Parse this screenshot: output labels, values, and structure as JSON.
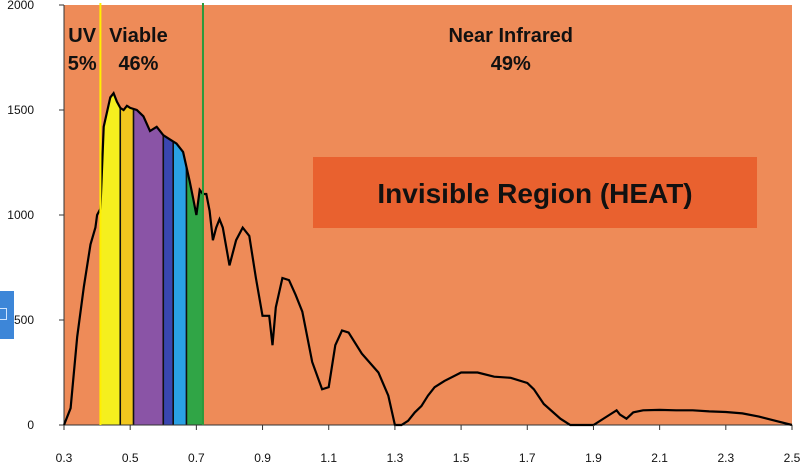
{
  "chart_data": {
    "type": "area",
    "title": "",
    "xlabel": "",
    "ylabel": "",
    "xlim": [
      0.3,
      2.5
    ],
    "ylim": [
      0,
      2000
    ],
    "x_ticks": [
      "0.3",
      "0.5",
      "0.7",
      "0.9",
      "1.1",
      "1.3",
      "1.5",
      "1.7",
      "1.9",
      "2.1",
      "2.3",
      "2.5"
    ],
    "y_ticks": [
      "0",
      "500",
      "1000",
      "1500",
      "2000"
    ],
    "series": [
      {
        "x": [
          0.3,
          0.32,
          0.34,
          0.36,
          0.38,
          0.395,
          0.4,
          0.41,
          0.42,
          0.44,
          0.45,
          0.46,
          0.47,
          0.48,
          0.49,
          0.5,
          0.52,
          0.54,
          0.56,
          0.58,
          0.6,
          0.62,
          0.64,
          0.66,
          0.68,
          0.69,
          0.7,
          0.71,
          0.72,
          0.73,
          0.74,
          0.75,
          0.76,
          0.77,
          0.78,
          0.8,
          0.82,
          0.84,
          0.86,
          0.88,
          0.9,
          0.92,
          0.93,
          0.94,
          0.96,
          0.98,
          1.0,
          1.02,
          1.05,
          1.08,
          1.1,
          1.12,
          1.14,
          1.16,
          1.2,
          1.25,
          1.28,
          1.3,
          1.32,
          1.34,
          1.36,
          1.38,
          1.4,
          1.42,
          1.45,
          1.5,
          1.55,
          1.6,
          1.65,
          1.7,
          1.72,
          1.75,
          1.8,
          1.83,
          1.85,
          1.9,
          1.95,
          1.97,
          1.98,
          2.0,
          2.02,
          2.05,
          2.1,
          2.15,
          2.2,
          2.25,
          2.3,
          2.35,
          2.4,
          2.45,
          2.5
        ],
        "y": [
          0,
          80,
          420,
          660,
          860,
          940,
          1000,
          1030,
          1420,
          1560,
          1580,
          1540,
          1510,
          1500,
          1520,
          1510,
          1500,
          1470,
          1400,
          1420,
          1380,
          1360,
          1340,
          1300,
          1160,
          1080,
          1000,
          1120,
          1100,
          1100,
          1020,
          880,
          940,
          980,
          940,
          760,
          880,
          940,
          900,
          700,
          520,
          520,
          380,
          560,
          700,
          690,
          620,
          540,
          300,
          170,
          180,
          380,
          450,
          440,
          340,
          250,
          140,
          0,
          0,
          20,
          60,
          90,
          140,
          180,
          210,
          250,
          250,
          230,
          225,
          200,
          170,
          100,
          30,
          0,
          0,
          0,
          50,
          70,
          50,
          30,
          60,
          70,
          72,
          70,
          70,
          65,
          62,
          55,
          40,
          20,
          0
        ],
        "regions": [
          {
            "label": "UV",
            "percent": "5%",
            "range": [
              0.3,
              0.4
            ]
          },
          {
            "label": "Viable",
            "percent": "46%",
            "range": [
              0.4,
              0.71
            ]
          },
          {
            "label": "Near Infrared",
            "percent": "49%",
            "range": [
              0.71,
              2.5
            ]
          }
        ]
      }
    ],
    "spectrum_bands": [
      {
        "range": [
          0.41,
          0.47
        ],
        "color": "#f5ef1e"
      },
      {
        "range": [
          0.47,
          0.51
        ],
        "color": "#f2c71e"
      },
      {
        "range": [
          0.51,
          0.6
        ],
        "color": "#8a54a6"
      },
      {
        "range": [
          0.6,
          0.63
        ],
        "color": "#3a46b0"
      },
      {
        "range": [
          0.63,
          0.67
        ],
        "color": "#2aa1e4"
      },
      {
        "range": [
          0.67,
          0.72
        ],
        "color": "#30a546"
      }
    ],
    "boundary_lines": [
      {
        "x": 0.41,
        "color": "#ffef00"
      },
      {
        "x": 0.72,
        "color": "#2a9a3c"
      }
    ],
    "annotation": "Invisible Region (HEAT)",
    "colors": {
      "background": "#ee8b58",
      "overlay_box": "#e9612f",
      "curve": "#000000"
    }
  }
}
